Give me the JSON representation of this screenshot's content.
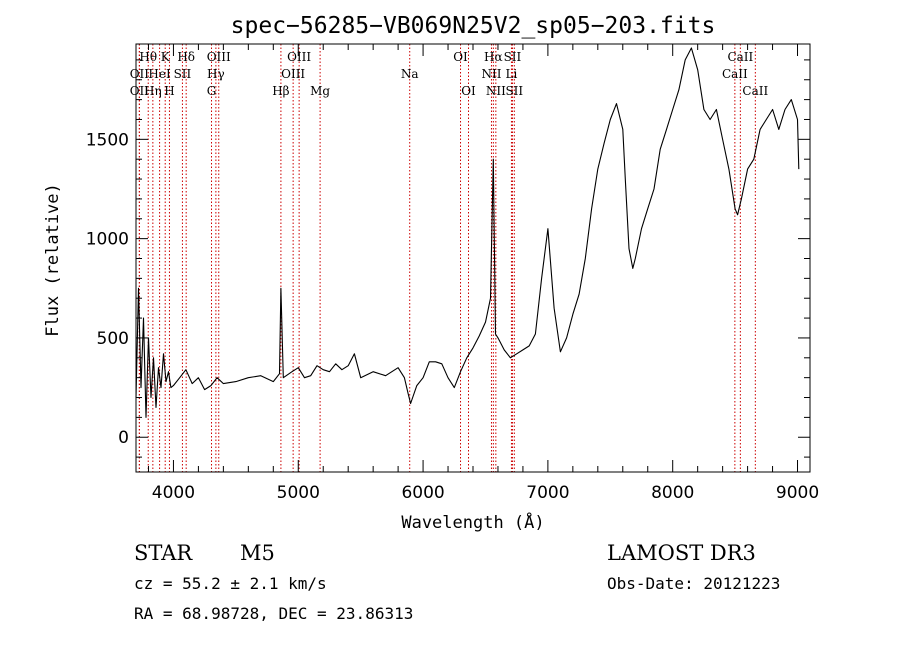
{
  "chart_data": {
    "type": "line",
    "title": "spec−56285−VB069N25V2_sp05−203.fits",
    "xlabel": "Wavelength (Å)",
    "ylabel": "Flux (relative)",
    "xlim": [
      3700,
      9100
    ],
    "ylim": [
      -175,
      1980
    ],
    "xticks": [
      4000,
      5000,
      6000,
      7000,
      8000,
      9000
    ],
    "yticks": [
      0,
      500,
      1000,
      1500
    ],
    "grid": false,
    "legend": "none",
    "colors": {
      "spectrum": "#000000",
      "lines": "#cc0000",
      "axes": "#000000"
    },
    "series": [
      {
        "x": [
          3700,
          3720,
          3740,
          3760,
          3780,
          3800,
          3820,
          3840,
          3860,
          3880,
          3900,
          3920,
          3940,
          3960,
          3980,
          4000,
          4050,
          4100,
          4150,
          4200,
          4250,
          4300,
          4350,
          4400,
          4500,
          4600,
          4700,
          4800,
          4850,
          4861,
          4880,
          4950,
          5000,
          5050,
          5100,
          5150,
          5200,
          5250,
          5300,
          5350,
          5400,
          5450,
          5500,
          5600,
          5700,
          5800,
          5850,
          5880,
          5900,
          5950,
          6000,
          6050,
          6100,
          6150,
          6200,
          6250,
          6300,
          6350,
          6400,
          6450,
          6500,
          6540,
          6563,
          6580,
          6600,
          6650,
          6700,
          6750,
          6800,
          6850,
          6900,
          6950,
          7000,
          7050,
          7100,
          7150,
          7200,
          7250,
          7300,
          7350,
          7400,
          7450,
          7500,
          7550,
          7600,
          7620,
          7650,
          7680,
          7700,
          7750,
          7800,
          7850,
          7900,
          7950,
          8000,
          8050,
          8100,
          8150,
          8200,
          8250,
          8300,
          8350,
          8400,
          8450,
          8500,
          8520,
          8550,
          8600,
          8650,
          8700,
          8750,
          8800,
          8850,
          8900,
          8950,
          9000,
          9010
        ],
        "y": [
          200,
          750,
          250,
          600,
          100,
          500,
          200,
          400,
          150,
          350,
          250,
          420,
          280,
          330,
          250,
          260,
          300,
          340,
          270,
          300,
          240,
          260,
          300,
          270,
          280,
          300,
          310,
          280,
          320,
          750,
          300,
          330,
          350,
          300,
          310,
          360,
          340,
          330,
          370,
          340,
          360,
          420,
          300,
          330,
          310,
          350,
          300,
          220,
          170,
          260,
          300,
          380,
          380,
          370,
          300,
          250,
          330,
          400,
          450,
          510,
          580,
          700,
          1400,
          520,
          500,
          440,
          400,
          420,
          440,
          460,
          520,
          800,
          1050,
          650,
          430,
          500,
          620,
          720,
          900,
          1150,
          1350,
          1480,
          1600,
          1680,
          1550,
          1300,
          950,
          850,
          900,
          1050,
          1150,
          1250,
          1450,
          1550,
          1650,
          1750,
          1900,
          1960,
          1850,
          1650,
          1600,
          1650,
          1500,
          1350,
          1150,
          1120,
          1200,
          1350,
          1400,
          1550,
          1600,
          1650,
          1550,
          1650,
          1700,
          1600,
          1350
        ]
      }
    ],
    "lines": [
      {
        "label": "Hθ",
        "x": 3798,
        "row": 1
      },
      {
        "label": "K",
        "x": 3934,
        "row": 1
      },
      {
        "label": "Hδ",
        "x": 4102,
        "row": 1
      },
      {
        "label": "OIII",
        "x": 4363,
        "row": 1
      },
      {
        "label": "OIII",
        "x": 5007,
        "row": 1
      },
      {
        "label": "OI",
        "x": 6300,
        "row": 1
      },
      {
        "label": "Hα",
        "x": 6563,
        "row": 1
      },
      {
        "label": "SII",
        "x": 6716,
        "row": 1
      },
      {
        "label": "CaII",
        "x": 8542,
        "row": 1
      },
      {
        "label": "OII",
        "x": 3727,
        "row": 2
      },
      {
        "label": "HeI",
        "x": 3889,
        "row": 2
      },
      {
        "label": "SII",
        "x": 4072,
        "row": 2
      },
      {
        "label": "Hγ",
        "x": 4340,
        "row": 2
      },
      {
        "label": "OIII",
        "x": 4959,
        "row": 2
      },
      {
        "label": "Na",
        "x": 5893,
        "row": 2
      },
      {
        "label": "NII",
        "x": 6548,
        "row": 2
      },
      {
        "label": "Li",
        "x": 6708,
        "row": 2
      },
      {
        "label": "CaII",
        "x": 8498,
        "row": 2
      },
      {
        "label": "OII",
        "x": 3727,
        "row": 3
      },
      {
        "label": "Hη",
        "x": 3835,
        "row": 3
      },
      {
        "label": "H",
        "x": 3968,
        "row": 3
      },
      {
        "label": "G",
        "x": 4305,
        "row": 3
      },
      {
        "label": "Hβ",
        "x": 4861,
        "row": 3
      },
      {
        "label": "Mg",
        "x": 5175,
        "row": 3
      },
      {
        "label": "OI",
        "x": 6364,
        "row": 3
      },
      {
        "label": "NII",
        "x": 6583,
        "row": 3
      },
      {
        "label": "SII",
        "x": 6731,
        "row": 3
      },
      {
        "label": "CaII",
        "x": 8662,
        "row": 3
      }
    ]
  },
  "info": {
    "object_class": "STAR",
    "subclass": "M5",
    "survey": "LAMOST DR3",
    "cz": "cz = 55.2 ± 2.1 km/s",
    "obs_date": "Obs-Date: 20121223",
    "coords": "RA =  68.98728, DEC =  23.86313"
  }
}
